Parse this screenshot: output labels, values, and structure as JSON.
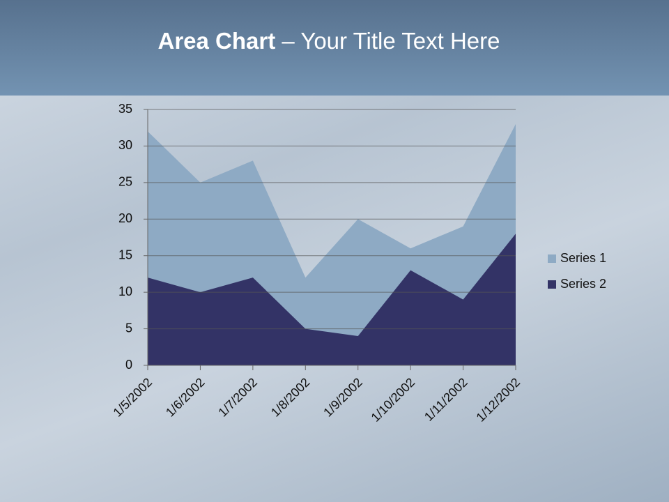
{
  "slide": {
    "title_bold": "Area Chart",
    "title_rest": "– Your Title Text Here"
  },
  "chart_data": {
    "type": "area",
    "x": [
      "1/5/2002",
      "1/6/2002",
      "1/7/2002",
      "1/8/2002",
      "1/9/2002",
      "1/10/2002",
      "1/11/2002",
      "1/12/2002"
    ],
    "series": [
      {
        "name": "Series 1",
        "color": "#8eaac4",
        "values": [
          32,
          25,
          28,
          12,
          20,
          16,
          19,
          33
        ]
      },
      {
        "name": "Series 2",
        "color": "#333366",
        "values": [
          12,
          10,
          12,
          5,
          4,
          13,
          9,
          18
        ]
      }
    ],
    "ylim": [
      0,
      35
    ],
    "yticks": [
      0,
      5,
      10,
      15,
      20,
      25,
      30,
      35
    ],
    "grid": true,
    "legend": "right"
  }
}
